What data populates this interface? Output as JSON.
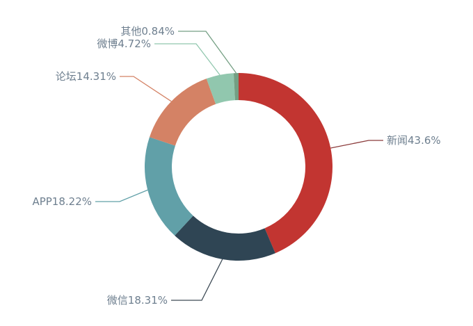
{
  "chart_data": {
    "type": "pie",
    "variant": "donut",
    "categories": [
      "新闻",
      "微信",
      "APP",
      "论坛",
      "微博",
      "其他"
    ],
    "values": [
      43.6,
      18.31,
      18.22,
      14.31,
      4.72,
      0.84
    ],
    "labels": [
      "新闻43.6%",
      "微信18.31%",
      "APP18.22%",
      "论坛14.31%",
      "微博4.72%",
      "其他0.84%"
    ],
    "colors": [
      "#c23531",
      "#2f4554",
      "#61a0a8",
      "#d48265",
      "#91c7ae",
      "#749f83"
    ],
    "direction": "clockwise from top",
    "legend": "none"
  }
}
